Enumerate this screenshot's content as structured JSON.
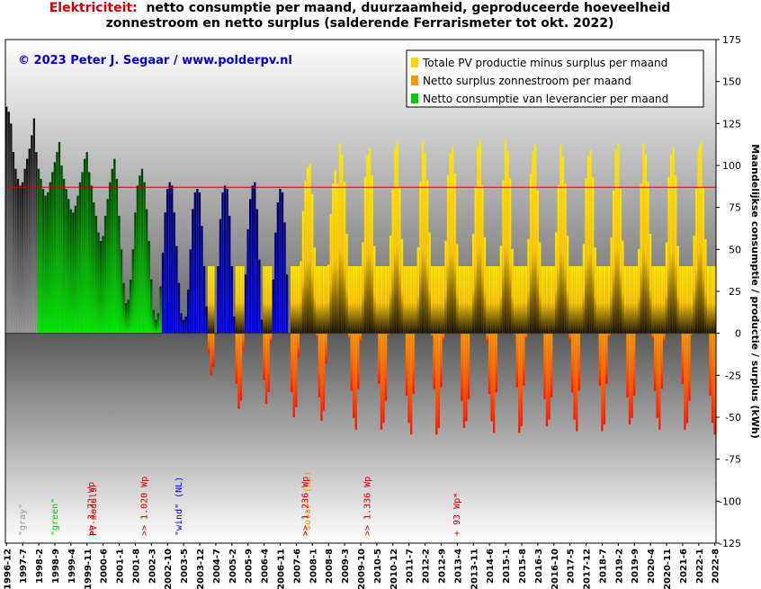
{
  "title": {
    "lead": "Elektriciteit:",
    "line1": "netto consumptie per maand, duurzaamheid, geproduceerde hoeveelheid",
    "line2": "zonnestroom en netto surplus (salderende Ferrarismeter tot okt. 2022)"
  },
  "copyright": "© 2023 Peter J. Segaar / www.polderpv.nl",
  "colors": {
    "pv_production": "#ffd200",
    "surplus": "#ff9900",
    "consumption": "#00cc00",
    "gray_period": "#9a9a9a",
    "wind_period": "#0000dd",
    "solar_period": "#ff9900",
    "reference_line": "#cc0000"
  },
  "chart_data": {
    "type": "bar",
    "x_start": "1996-12",
    "x_end": "2022-8",
    "x_tick_labels": [
      "1996-12",
      "1997-7",
      "1998-2",
      "1998-9",
      "1999-4",
      "1999-11",
      "2000-6",
      "2001-1",
      "2001-8",
      "2002-3",
      "2002-10",
      "2003-5",
      "2003-12",
      "2004-7",
      "2005-2",
      "2005-9",
      "2006-4",
      "2006-11",
      "2007-6",
      "2008-1",
      "2008-8",
      "2009-3",
      "2009-10",
      "2010-5",
      "2010-12",
      "2011-7",
      "2012-2",
      "2012-9",
      "2013-4",
      "2013-11",
      "2014-6",
      "2015-1",
      "2015-8",
      "2016-3",
      "2016-10",
      "2017-5",
      "2017-12",
      "2018-7",
      "2019-2",
      "2019-9",
      "2020-4",
      "2020-11",
      "2021-6",
      "2022-1",
      "2022-8"
    ],
    "y_ticks": [
      175,
      150,
      125,
      100,
      75,
      50,
      25,
      0,
      -25,
      -50,
      -75,
      -100,
      -125
    ],
    "ylim": [
      -125,
      175
    ],
    "ylabel": "Maandelijkse consumptie / productie / surplus (kWh)",
    "reference_line_y": 87,
    "legend": [
      {
        "label": "Totale PV productie minus surplus per maand",
        "color": "#ffd200"
      },
      {
        "label": "Netto surplus zonnestroom per maand",
        "color": "#ff9900"
      },
      {
        "label": "Netto consumptie van leverancier per maand",
        "color": "#00cc00"
      }
    ],
    "legend_position": "top-right",
    "periods": [
      {
        "label": "\"gray\"",
        "start": "1996-12",
        "end": "1998-1",
        "color": "#9a9a9a"
      },
      {
        "label": "\"green\"",
        "start": "1998-2",
        "end": "2002-7",
        "color": "#00cc00"
      },
      {
        "label": "\"wind\" (NL)",
        "start": "2002-8",
        "end": "2007-3",
        "color": "#0000dd"
      },
      {
        "label": "\"solar\" (NL)",
        "start": "2007-4",
        "end": "2022-8",
        "color": "#ff9900"
      }
    ],
    "annotations": [
      {
        "text": ">> 3.72 Wp",
        "at": "2000-1",
        "color": "#cc0000"
      },
      {
        "text": "PV-moduls",
        "at": "2000-2",
        "color": "#cc0000"
      },
      {
        "text": ">> 1.020 Wp",
        "at": "2001-12",
        "color": "#cc0000"
      },
      {
        "text": ">> 1.236 Wp",
        "at": "2007-10",
        "color": "#cc0000"
      },
      {
        "text": ">> 1.336 Wp",
        "at": "2010-1",
        "color": "#cc0000"
      },
      {
        "text": "+ 93 Wp*",
        "at": "2013-4",
        "color": "#cc0000"
      }
    ],
    "series": [
      {
        "name": "Netto consumptie van leverancier per maand",
        "start": "1996-12",
        "values": [
          135,
          132,
          125,
          108,
          98,
          92,
          88,
          90,
          98,
          104,
          110,
          118,
          128,
          108,
          98,
          92,
          86,
          82,
          84,
          90,
          96,
          102,
          108,
          114,
          100,
          92,
          86,
          80,
          74,
          72,
          76,
          82,
          90,
          96,
          104,
          108,
          96,
          88,
          78,
          70,
          60,
          55,
          58,
          70,
          80,
          90,
          98,
          104,
          92,
          70,
          50,
          30,
          18,
          20,
          32,
          50,
          72,
          88,
          94,
          98,
          90,
          74,
          55,
          32,
          14,
          8,
          12,
          28,
          48,
          72,
          86,
          90,
          88,
          72,
          52,
          30,
          12,
          8,
          10,
          26,
          50,
          74,
          84,
          86,
          84,
          64,
          40,
          16,
          -12,
          -25,
          -20,
          0,
          40,
          68,
          84,
          88,
          86,
          70,
          40,
          10,
          -30,
          -45,
          -40,
          -10,
          35,
          62,
          80,
          88,
          90,
          74,
          44,
          8,
          -28,
          -42,
          -35,
          -5,
          32,
          60,
          78,
          86,
          84,
          66,
          35,
          0,
          -35,
          -50,
          -44,
          -14,
          28,
          58,
          76,
          84,
          86,
          68,
          36,
          -2,
          -38,
          -52,
          -46,
          -18,
          26,
          56,
          74,
          82
        ]
      }
    ]
  }
}
